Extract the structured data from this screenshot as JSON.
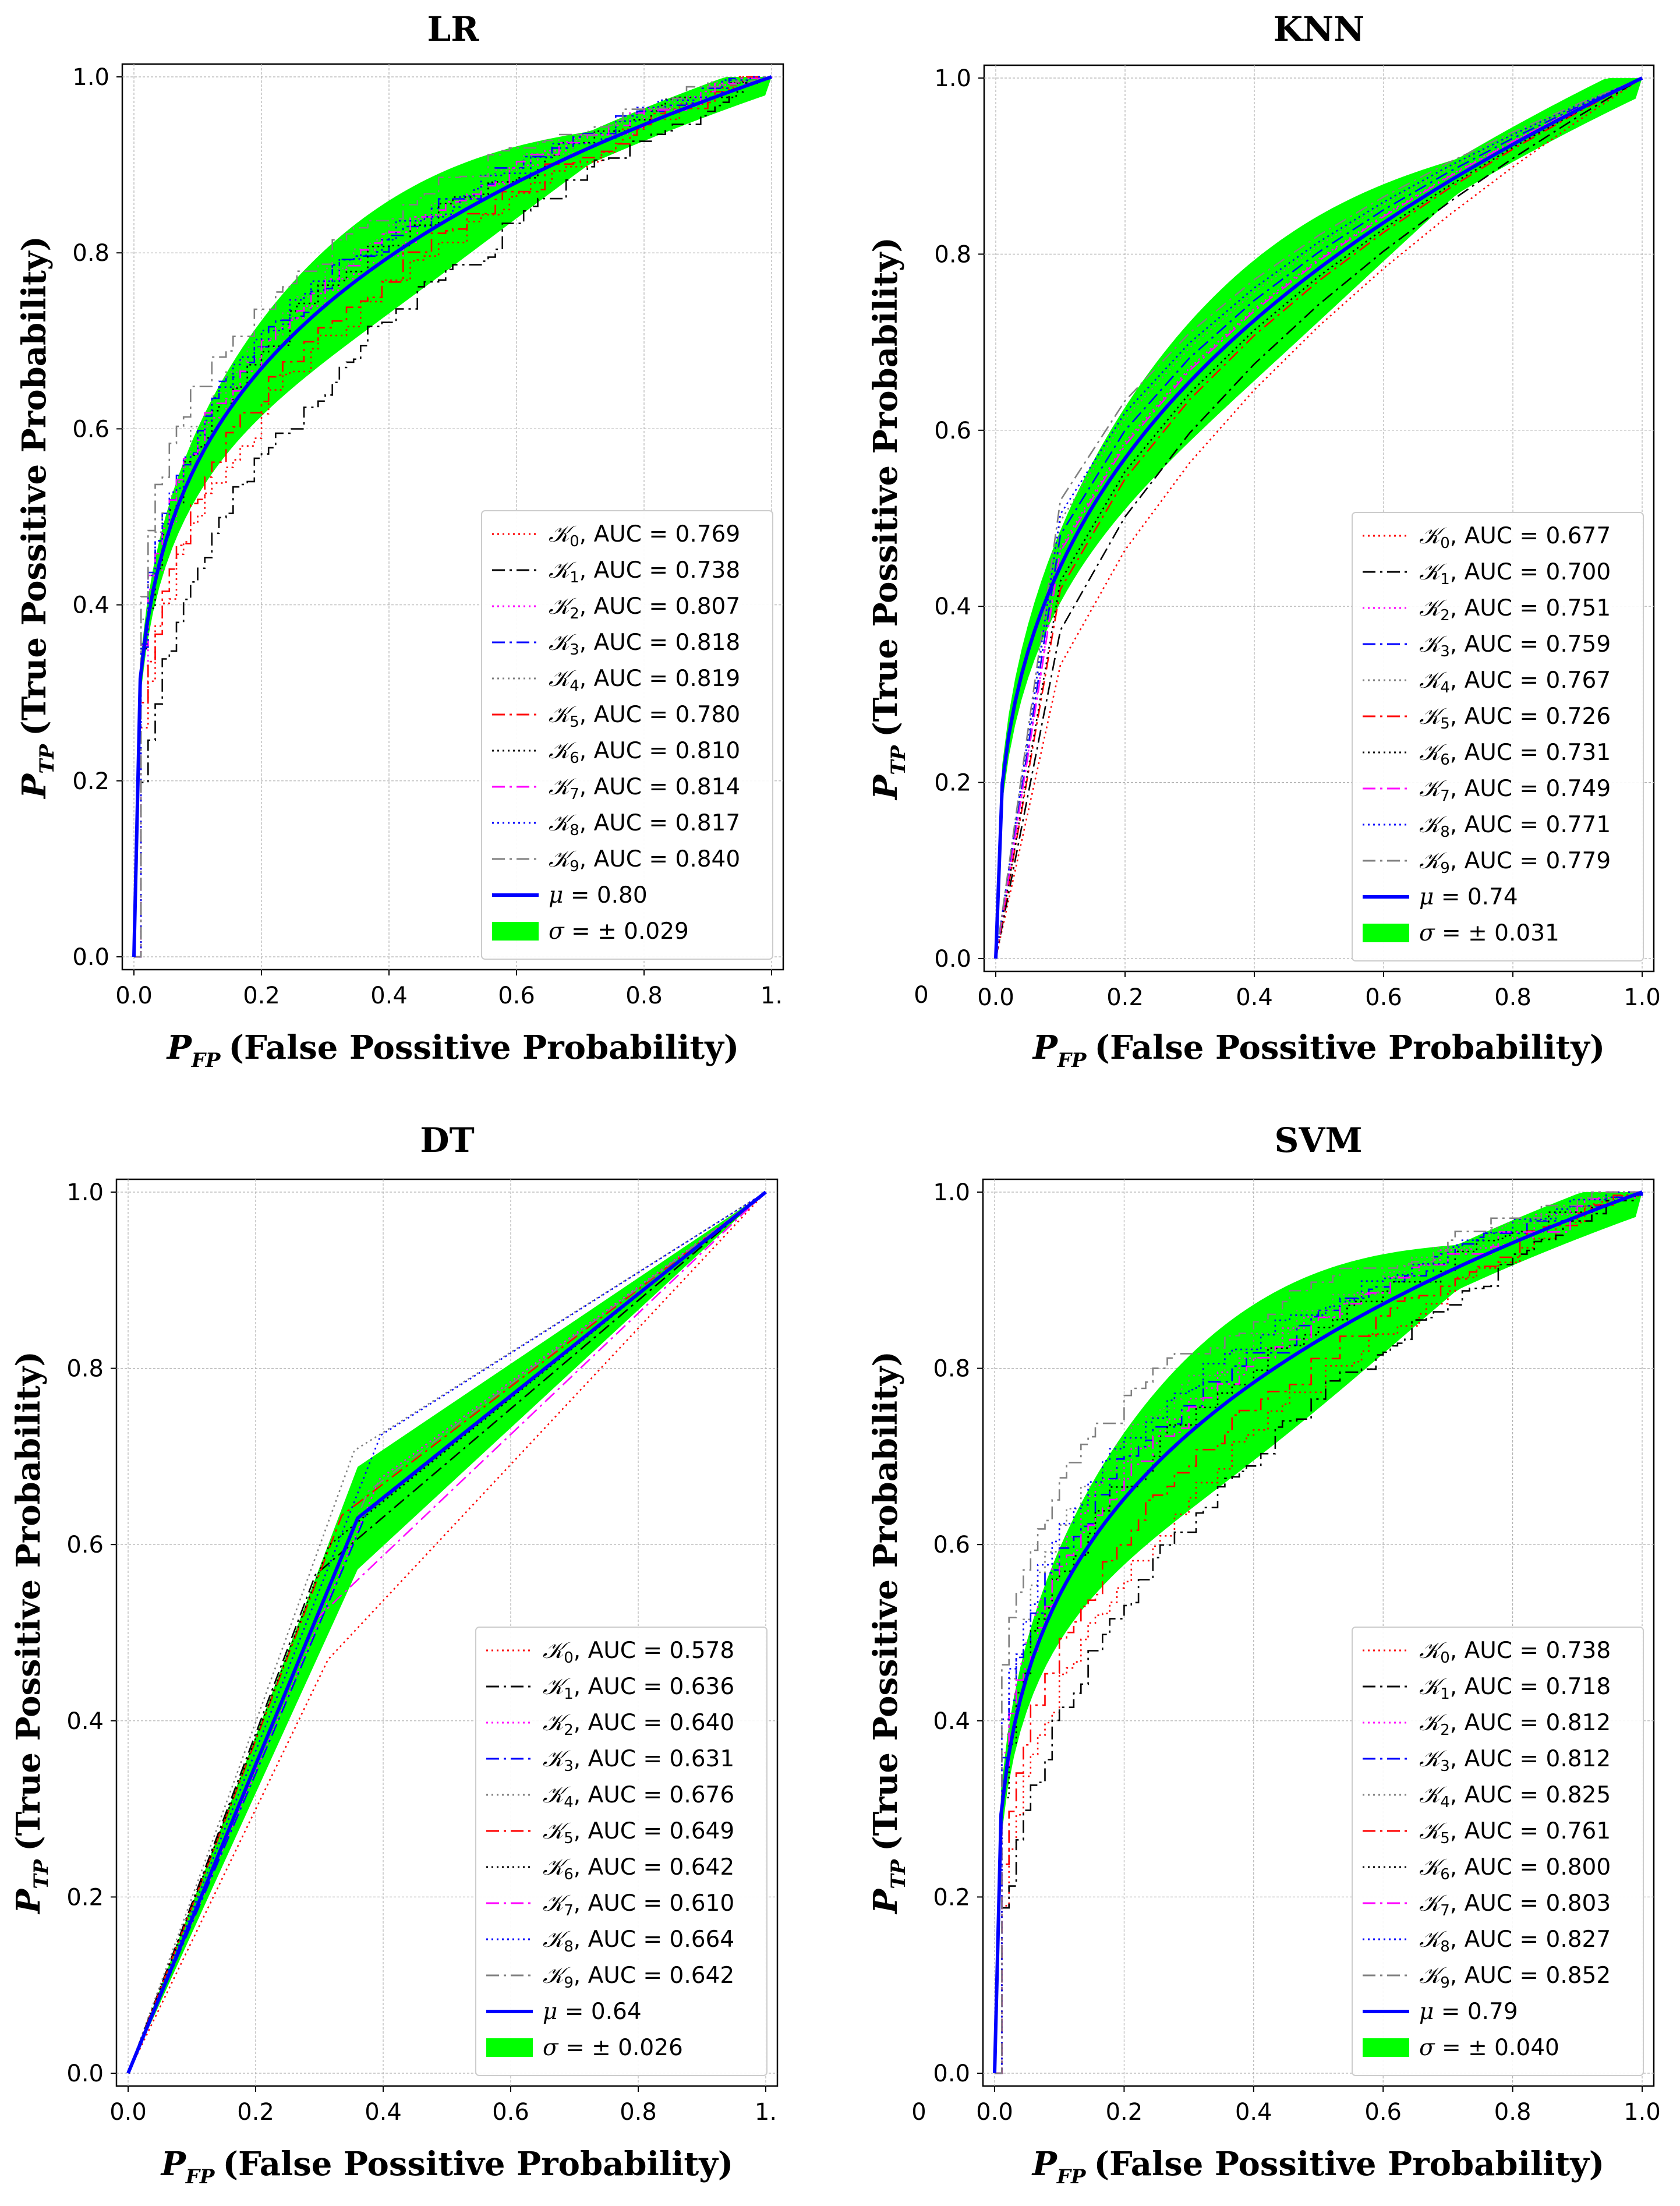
{
  "figure": {
    "stray_tick_labels": [
      "0",
      "0"
    ]
  },
  "chart_data": [
    {
      "type": "line",
      "panel": "LR",
      "title": "LR",
      "xlabel_symbol": "P",
      "xlabel_subscript": "FP",
      "xlabel_text": "(False Possitive Probability)",
      "ylabel_symbol": "P",
      "ylabel_subscript": "TP",
      "ylabel_text": "(True Possitive Probability)",
      "xlim": [
        0,
        1
      ],
      "ylim": [
        0,
        1
      ],
      "xticks": [
        "0.0",
        "0.2",
        "0.4",
        "0.6",
        "0.8",
        "1."
      ],
      "yticks": [
        "0.0",
        "0.2",
        "0.4",
        "0.6",
        "0.8",
        "1.0"
      ],
      "grid": true,
      "legend_position": "lower-right",
      "series": [
        {
          "name": "K0",
          "sub": "0",
          "auc": "0.769",
          "color": "#ff0000",
          "dash": "dotted"
        },
        {
          "name": "K1",
          "sub": "1",
          "auc": "0.738",
          "color": "#000000",
          "dash": "dashdot"
        },
        {
          "name": "K2",
          "sub": "2",
          "auc": "0.807",
          "color": "#ff00ff",
          "dash": "dotted"
        },
        {
          "name": "K3",
          "sub": "3",
          "auc": "0.818",
          "color": "#0000ff",
          "dash": "dashdot"
        },
        {
          "name": "K4",
          "sub": "4",
          "auc": "0.819",
          "color": "#808080",
          "dash": "dotted"
        },
        {
          "name": "K5",
          "sub": "5",
          "auc": "0.780",
          "color": "#ff0000",
          "dash": "dashdot"
        },
        {
          "name": "K6",
          "sub": "6",
          "auc": "0.810",
          "color": "#000000",
          "dash": "dotted"
        },
        {
          "name": "K7",
          "sub": "7",
          "auc": "0.814",
          "color": "#ff00ff",
          "dash": "dashdot"
        },
        {
          "name": "K8",
          "sub": "8",
          "auc": "0.817",
          "color": "#0000ff",
          "dash": "dotted"
        },
        {
          "name": "K9",
          "sub": "9",
          "auc": "0.840",
          "color": "#808080",
          "dash": "dashdot"
        }
      ],
      "mean_label": "0.80",
      "std_label": "0.029",
      "mean_auc": 0.8,
      "std": 0.029
    },
    {
      "type": "line",
      "panel": "KNN",
      "title": "KNN",
      "xlabel_symbol": "P",
      "xlabel_subscript": "FP",
      "xlabel_text": "(False Possitive Probability)",
      "ylabel_symbol": "P",
      "ylabel_subscript": "TP",
      "ylabel_text": "(True Possitive Probability)",
      "xlim": [
        0,
        1
      ],
      "ylim": [
        0,
        1
      ],
      "xticks": [
        "0.0",
        "0.2",
        "0.4",
        "0.6",
        "0.8",
        "1.0"
      ],
      "yticks": [
        "0.0",
        "0.2",
        "0.4",
        "0.6",
        "0.8",
        "1.0"
      ],
      "grid": true,
      "legend_position": "lower-right",
      "series": [
        {
          "name": "K0",
          "sub": "0",
          "auc": "0.677",
          "color": "#ff0000",
          "dash": "dotted"
        },
        {
          "name": "K1",
          "sub": "1",
          "auc": "0.700",
          "color": "#000000",
          "dash": "dashdot"
        },
        {
          "name": "K2",
          "sub": "2",
          "auc": "0.751",
          "color": "#ff00ff",
          "dash": "dotted"
        },
        {
          "name": "K3",
          "sub": "3",
          "auc": "0.759",
          "color": "#0000ff",
          "dash": "dashdot"
        },
        {
          "name": "K4",
          "sub": "4",
          "auc": "0.767",
          "color": "#808080",
          "dash": "dotted"
        },
        {
          "name": "K5",
          "sub": "5",
          "auc": "0.726",
          "color": "#ff0000",
          "dash": "dashdot"
        },
        {
          "name": "K6",
          "sub": "6",
          "auc": "0.731",
          "color": "#000000",
          "dash": "dotted"
        },
        {
          "name": "K7",
          "sub": "7",
          "auc": "0.749",
          "color": "#ff00ff",
          "dash": "dashdot"
        },
        {
          "name": "K8",
          "sub": "8",
          "auc": "0.771",
          "color": "#0000ff",
          "dash": "dotted"
        },
        {
          "name": "K9",
          "sub": "9",
          "auc": "0.779",
          "color": "#808080",
          "dash": "dashdot"
        }
      ],
      "mean_label": "0.74",
      "std_label": "0.031",
      "mean_auc": 0.74,
      "std": 0.031
    },
    {
      "type": "line",
      "panel": "DT",
      "title": "DT",
      "xlabel_symbol": "P",
      "xlabel_subscript": "FP",
      "xlabel_text": "(False Possitive Probability)",
      "ylabel_symbol": "P",
      "ylabel_subscript": "TP",
      "ylabel_text": "(True Possitive Probability)",
      "xlim": [
        0,
        1
      ],
      "ylim": [
        0,
        1
      ],
      "xticks": [
        "0.0",
        "0.2",
        "0.4",
        "0.6",
        "0.8",
        "1."
      ],
      "yticks": [
        "0.0",
        "0.2",
        "0.4",
        "0.6",
        "0.8",
        "1.0"
      ],
      "grid": true,
      "legend_position": "lower-right",
      "series": [
        {
          "name": "K0",
          "sub": "0",
          "auc": "0.578",
          "color": "#ff0000",
          "dash": "dotted"
        },
        {
          "name": "K1",
          "sub": "1",
          "auc": "0.636",
          "color": "#000000",
          "dash": "dashdot"
        },
        {
          "name": "K2",
          "sub": "2",
          "auc": "0.640",
          "color": "#ff00ff",
          "dash": "dotted"
        },
        {
          "name": "K3",
          "sub": "3",
          "auc": "0.631",
          "color": "#0000ff",
          "dash": "dashdot"
        },
        {
          "name": "K4",
          "sub": "4",
          "auc": "0.676",
          "color": "#808080",
          "dash": "dotted"
        },
        {
          "name": "K5",
          "sub": "5",
          "auc": "0.649",
          "color": "#ff0000",
          "dash": "dashdot"
        },
        {
          "name": "K6",
          "sub": "6",
          "auc": "0.642",
          "color": "#000000",
          "dash": "dotted"
        },
        {
          "name": "K7",
          "sub": "7",
          "auc": "0.610",
          "color": "#ff00ff",
          "dash": "dashdot"
        },
        {
          "name": "K8",
          "sub": "8",
          "auc": "0.664",
          "color": "#0000ff",
          "dash": "dotted"
        },
        {
          "name": "K9",
          "sub": "9",
          "auc": "0.642",
          "color": "#808080",
          "dash": "dashdot"
        }
      ],
      "mean_label": "0.64",
      "std_label": "0.026",
      "mean_auc": 0.64,
      "std": 0.026
    },
    {
      "type": "line",
      "panel": "SVM",
      "title": "SVM",
      "xlabel_symbol": "P",
      "xlabel_subscript": "FP",
      "xlabel_text": "(False Possitive Probability)",
      "ylabel_symbol": "P",
      "ylabel_subscript": "TP",
      "ylabel_text": "(True Possitive Probability)",
      "xlim": [
        0,
        1
      ],
      "ylim": [
        0,
        1
      ],
      "xticks": [
        "0.0",
        "0.2",
        "0.4",
        "0.6",
        "0.8",
        "1.0"
      ],
      "yticks": [
        "0.0",
        "0.2",
        "0.4",
        "0.6",
        "0.8",
        "1.0"
      ],
      "grid": true,
      "legend_position": "lower-right",
      "series": [
        {
          "name": "K0",
          "sub": "0",
          "auc": "0.738",
          "color": "#ff0000",
          "dash": "dotted"
        },
        {
          "name": "K1",
          "sub": "1",
          "auc": "0.718",
          "color": "#000000",
          "dash": "dashdot"
        },
        {
          "name": "K2",
          "sub": "2",
          "auc": "0.812",
          "color": "#ff00ff",
          "dash": "dotted"
        },
        {
          "name": "K3",
          "sub": "3",
          "auc": "0.812",
          "color": "#0000ff",
          "dash": "dashdot"
        },
        {
          "name": "K4",
          "sub": "4",
          "auc": "0.825",
          "color": "#808080",
          "dash": "dotted"
        },
        {
          "name": "K5",
          "sub": "5",
          "auc": "0.761",
          "color": "#ff0000",
          "dash": "dashdot"
        },
        {
          "name": "K6",
          "sub": "6",
          "auc": "0.800",
          "color": "#000000",
          "dash": "dotted"
        },
        {
          "name": "K7",
          "sub": "7",
          "auc": "0.803",
          "color": "#ff00ff",
          "dash": "dashdot"
        },
        {
          "name": "K8",
          "sub": "8",
          "auc": "0.827",
          "color": "#0000ff",
          "dash": "dotted"
        },
        {
          "name": "K9",
          "sub": "9",
          "auc": "0.852",
          "color": "#808080",
          "dash": "dashdot"
        }
      ],
      "mean_label": "0.79",
      "std_label": "0.040",
      "mean_auc": 0.79,
      "std": 0.04
    }
  ]
}
